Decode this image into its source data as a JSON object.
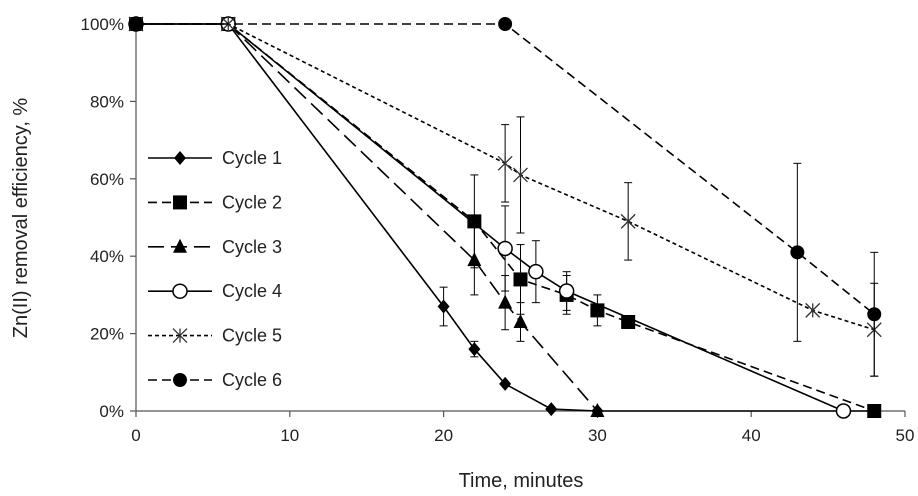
{
  "chart_data": {
    "type": "line",
    "title": "",
    "xlabel": "Time, minutes",
    "ylabel": "Zn(II) removal efficiency, %",
    "xlim": [
      0,
      50
    ],
    "ylim": [
      0,
      100
    ],
    "x_ticks": [
      "0",
      "10",
      "20",
      "30",
      "40",
      "50"
    ],
    "y_ticks": [
      "0%",
      "20%",
      "40%",
      "60%",
      "80%",
      "100%"
    ],
    "grid": false,
    "legend_position": "left",
    "series": [
      {
        "name": "Cycle 1",
        "marker": "diamond",
        "dash": "solid",
        "points": [
          [
            0,
            100
          ],
          [
            6,
            100
          ],
          [
            20,
            27
          ],
          [
            22,
            16
          ],
          [
            24,
            7
          ],
          [
            27,
            0.5
          ],
          [
            30,
            0
          ],
          [
            48,
            0
          ]
        ],
        "err": [
          0,
          0,
          5,
          2,
          0,
          0,
          0,
          0
        ]
      },
      {
        "name": "Cycle 2",
        "marker": "square",
        "dash": "dashed",
        "points": [
          [
            0,
            100
          ],
          [
            6,
            100
          ],
          [
            22,
            49
          ],
          [
            25,
            34
          ],
          [
            28,
            30
          ],
          [
            30,
            26
          ],
          [
            32,
            23
          ],
          [
            48,
            0
          ]
        ],
        "err": [
          0,
          0,
          12,
          9,
          5,
          4,
          0,
          0
        ]
      },
      {
        "name": "Cycle 3",
        "marker": "triangle",
        "dash": "longdash",
        "points": [
          [
            0,
            100
          ],
          [
            6,
            100
          ],
          [
            22,
            39
          ],
          [
            24,
            28
          ],
          [
            25,
            23
          ],
          [
            30,
            0
          ]
        ],
        "err": [
          0,
          0,
          9,
          7,
          5,
          0
        ]
      },
      {
        "name": "Cycle 4",
        "marker": "circle-open",
        "dash": "solid",
        "points": [
          [
            0,
            100
          ],
          [
            6,
            100
          ],
          [
            24,
            42
          ],
          [
            26,
            36
          ],
          [
            28,
            31
          ],
          [
            46,
            0
          ]
        ],
        "err": [
          0,
          0,
          11,
          8,
          5,
          0
        ]
      },
      {
        "name": "Cycle 5",
        "marker": "star",
        "dash": "dotted",
        "points": [
          [
            0,
            100
          ],
          [
            6,
            100
          ],
          [
            24,
            64
          ],
          [
            25,
            61
          ],
          [
            32,
            49
          ],
          [
            44,
            26
          ],
          [
            48,
            21
          ]
        ],
        "err": [
          0,
          0,
          10,
          15,
          10,
          0,
          12
        ]
      },
      {
        "name": "Cycle 6",
        "marker": "circle-filled",
        "dash": "dashed",
        "points": [
          [
            0,
            100
          ],
          [
            24,
            100
          ],
          [
            43,
            41
          ],
          [
            48,
            25
          ]
        ],
        "err": [
          0,
          0,
          23,
          16
        ]
      }
    ]
  }
}
